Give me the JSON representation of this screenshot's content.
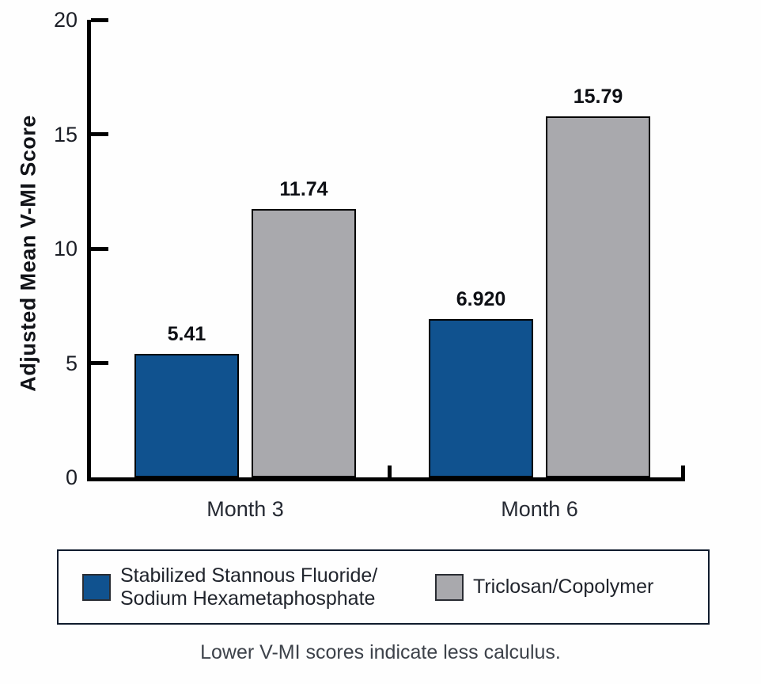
{
  "chart_data": {
    "type": "bar",
    "categories": [
      "Month 3",
      "Month 6"
    ],
    "series": [
      {
        "name": "Stabilized Stannous Fluoride/Sodium Hexametaphosphate",
        "values": [
          5.41,
          6.92
        ],
        "value_labels": [
          "5.41",
          "6.920"
        ],
        "color": "#10528f"
      },
      {
        "name": "Triclosan/Copolymer",
        "values": [
          11.74,
          15.79
        ],
        "value_labels": [
          "11.74",
          "15.79"
        ],
        "color": "#a9a9ad"
      }
    ],
    "title": "",
    "xlabel": "",
    "ylabel": "Adjusted Mean V-MI Score",
    "ylim": [
      0,
      20
    ],
    "yticks": [
      0,
      5,
      10,
      15,
      20
    ],
    "grid": false,
    "legend_position": "boxed-bottom"
  },
  "legend": {
    "items": [
      {
        "lines": [
          "Stabilized Stannous Fluoride/",
          "Sodium Hexametaphosphate"
        ],
        "color": "#10528f"
      },
      {
        "lines": [
          "Triclosan/Copolymer"
        ],
        "color": "#a9a9ad"
      }
    ]
  },
  "footnote": "Lower V-MI scores indicate less calculus.",
  "colors": {
    "bar_blue": "#10528f",
    "bar_gray": "#a9a9ad",
    "axis": "#000000",
    "legend_border": "#101b2d"
  }
}
